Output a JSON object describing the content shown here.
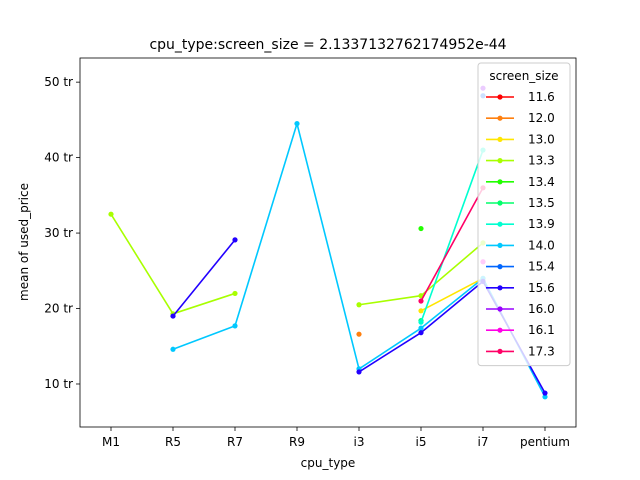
{
  "chart_data": {
    "type": "line",
    "title": "cpu_type:screen_size = 2.1337132762174952e-44",
    "xlabel": "cpu_type",
    "ylabel": "mean of used_price",
    "categories": [
      "M1",
      "R5",
      "R7",
      "R9",
      "i3",
      "i5",
      "i7",
      "pentium"
    ],
    "ylim": [
      4.3,
      53.2
    ],
    "yticks": [
      10,
      20,
      30,
      40,
      50
    ],
    "ytick_labels": [
      "10 tr",
      "20 tr",
      "30 tr",
      "40 tr",
      "50 tr"
    ],
    "grid": false,
    "legend": {
      "title": "screen_size",
      "placement": "top-right"
    },
    "series": [
      {
        "name": "11.6",
        "color": "#ff0000",
        "values": [
          null,
          null,
          null,
          null,
          null,
          null,
          null,
          null
        ]
      },
      {
        "name": "12.0",
        "color": "#ff7f0e",
        "values": [
          null,
          null,
          null,
          null,
          16.6,
          null,
          null,
          null
        ]
      },
      {
        "name": "13.0",
        "color": "#ffe600",
        "values": [
          null,
          null,
          null,
          null,
          null,
          19.7,
          24.0,
          null
        ]
      },
      {
        "name": "13.3",
        "color": "#a8ff00",
        "values": [
          32.5,
          19.3,
          22.0,
          null,
          20.5,
          21.7,
          28.7,
          null
        ]
      },
      {
        "name": "13.4",
        "color": "#22ff00",
        "values": [
          null,
          null,
          null,
          null,
          null,
          30.6,
          null,
          null
        ]
      },
      {
        "name": "13.5",
        "color": "#00ff6a",
        "values": [
          null,
          null,
          null,
          null,
          null,
          18.4,
          null,
          null
        ]
      },
      {
        "name": "13.9",
        "color": "#00ffd0",
        "values": [
          null,
          null,
          null,
          null,
          null,
          18.2,
          41.0,
          null
        ]
      },
      {
        "name": "14.0",
        "color": "#00c8ff",
        "values": [
          null,
          14.6,
          17.7,
          44.5,
          12.0,
          17.4,
          24.0,
          8.3
        ]
      },
      {
        "name": "15.4",
        "color": "#0066ff",
        "values": [
          null,
          null,
          null,
          null,
          null,
          null,
          48.2,
          null
        ]
      },
      {
        "name": "15.6",
        "color": "#2200ff",
        "values": [
          null,
          19.0,
          29.1,
          null,
          11.6,
          16.8,
          23.6,
          8.8
        ]
      },
      {
        "name": "16.0",
        "color": "#9900ff",
        "values": [
          null,
          null,
          null,
          null,
          null,
          null,
          49.2,
          null
        ]
      },
      {
        "name": "16.1",
        "color": "#ff00e6",
        "values": [
          null,
          null,
          null,
          null,
          null,
          null,
          26.2,
          null
        ]
      },
      {
        "name": "17.3",
        "color": "#ff0066",
        "values": [
          null,
          null,
          null,
          null,
          null,
          21.0,
          36.0,
          null
        ]
      }
    ]
  }
}
